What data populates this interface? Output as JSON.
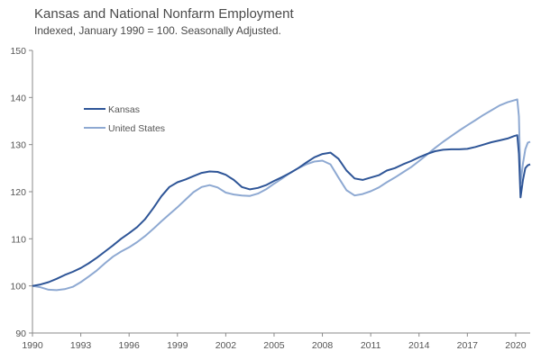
{
  "chart_data": {
    "type": "line",
    "title": "Kansas and National Nonfarm Employment",
    "subtitle": "Indexed, January 1990 = 100. Seasonally Adjusted.",
    "xlabel": "",
    "ylabel": "",
    "xlim": [
      1990,
      2020.9
    ],
    "ylim": [
      90,
      150
    ],
    "x_ticks": [
      1990,
      1993,
      1996,
      1999,
      2002,
      2005,
      2008,
      2011,
      2014,
      2017,
      2020
    ],
    "y_ticks": [
      90,
      100,
      110,
      120,
      130,
      140,
      150
    ],
    "grid": false,
    "legend_position": "top-left",
    "series": [
      {
        "name": "Kansas",
        "color": "#2e5597",
        "points": [
          [
            1990.0,
            100.0
          ],
          [
            1990.5,
            100.3
          ],
          [
            1991.0,
            100.8
          ],
          [
            1991.5,
            101.5
          ],
          [
            1992.0,
            102.3
          ],
          [
            1992.5,
            103.0
          ],
          [
            1993.0,
            103.8
          ],
          [
            1993.5,
            104.8
          ],
          [
            1994.0,
            106.0
          ],
          [
            1994.5,
            107.3
          ],
          [
            1995.0,
            108.6
          ],
          [
            1995.5,
            110.0
          ],
          [
            1996.0,
            111.2
          ],
          [
            1996.5,
            112.5
          ],
          [
            1997.0,
            114.2
          ],
          [
            1997.5,
            116.5
          ],
          [
            1998.0,
            119.0
          ],
          [
            1998.5,
            121.0
          ],
          [
            1999.0,
            122.0
          ],
          [
            1999.5,
            122.6
          ],
          [
            2000.0,
            123.3
          ],
          [
            2000.5,
            124.0
          ],
          [
            2001.0,
            124.3
          ],
          [
            2001.5,
            124.2
          ],
          [
            2002.0,
            123.6
          ],
          [
            2002.5,
            122.5
          ],
          [
            2003.0,
            121.0
          ],
          [
            2003.5,
            120.5
          ],
          [
            2004.0,
            120.8
          ],
          [
            2004.5,
            121.4
          ],
          [
            2005.0,
            122.3
          ],
          [
            2005.5,
            123.1
          ],
          [
            2006.0,
            124.0
          ],
          [
            2006.5,
            125.0
          ],
          [
            2007.0,
            126.2
          ],
          [
            2007.5,
            127.3
          ],
          [
            2008.0,
            128.0
          ],
          [
            2008.5,
            128.3
          ],
          [
            2009.0,
            127.0
          ],
          [
            2009.5,
            124.5
          ],
          [
            2010.0,
            122.8
          ],
          [
            2010.5,
            122.5
          ],
          [
            2011.0,
            123.0
          ],
          [
            2011.5,
            123.5
          ],
          [
            2012.0,
            124.5
          ],
          [
            2012.5,
            125.0
          ],
          [
            2013.0,
            125.8
          ],
          [
            2013.5,
            126.5
          ],
          [
            2014.0,
            127.3
          ],
          [
            2014.5,
            128.0
          ],
          [
            2015.0,
            128.6
          ],
          [
            2015.5,
            128.9
          ],
          [
            2016.0,
            129.0
          ],
          [
            2016.5,
            129.0
          ],
          [
            2017.0,
            129.1
          ],
          [
            2017.5,
            129.5
          ],
          [
            2018.0,
            130.0
          ],
          [
            2018.5,
            130.5
          ],
          [
            2019.0,
            130.9
          ],
          [
            2019.5,
            131.3
          ],
          [
            2019.9,
            131.8
          ],
          [
            2020.1,
            132.0
          ],
          [
            2020.2,
            128.0
          ],
          [
            2020.3,
            118.8
          ],
          [
            2020.45,
            122.5
          ],
          [
            2020.6,
            125.0
          ],
          [
            2020.75,
            125.6
          ],
          [
            2020.9,
            125.8
          ]
        ]
      },
      {
        "name": "United States",
        "color": "#8ea9d2",
        "points": [
          [
            1990.0,
            100.0
          ],
          [
            1990.5,
            99.7
          ],
          [
            1991.0,
            99.2
          ],
          [
            1991.5,
            99.1
          ],
          [
            1992.0,
            99.3
          ],
          [
            1992.5,
            99.8
          ],
          [
            1993.0,
            100.8
          ],
          [
            1993.5,
            102.0
          ],
          [
            1994.0,
            103.3
          ],
          [
            1994.5,
            104.8
          ],
          [
            1995.0,
            106.2
          ],
          [
            1995.5,
            107.3
          ],
          [
            1996.0,
            108.2
          ],
          [
            1996.5,
            109.3
          ],
          [
            1997.0,
            110.6
          ],
          [
            1997.5,
            112.1
          ],
          [
            1998.0,
            113.7
          ],
          [
            1998.5,
            115.2
          ],
          [
            1999.0,
            116.7
          ],
          [
            1999.5,
            118.3
          ],
          [
            2000.0,
            119.9
          ],
          [
            2000.5,
            121.0
          ],
          [
            2001.0,
            121.4
          ],
          [
            2001.5,
            120.9
          ],
          [
            2002.0,
            119.8
          ],
          [
            2002.5,
            119.4
          ],
          [
            2003.0,
            119.2
          ],
          [
            2003.5,
            119.1
          ],
          [
            2004.0,
            119.6
          ],
          [
            2004.5,
            120.5
          ],
          [
            2005.0,
            121.7
          ],
          [
            2005.5,
            122.8
          ],
          [
            2006.0,
            124.0
          ],
          [
            2006.5,
            125.0
          ],
          [
            2007.0,
            125.8
          ],
          [
            2007.5,
            126.4
          ],
          [
            2008.0,
            126.6
          ],
          [
            2008.5,
            125.8
          ],
          [
            2009.0,
            123.0
          ],
          [
            2009.5,
            120.3
          ],
          [
            2010.0,
            119.2
          ],
          [
            2010.5,
            119.5
          ],
          [
            2011.0,
            120.1
          ],
          [
            2011.5,
            120.9
          ],
          [
            2012.0,
            122.0
          ],
          [
            2012.5,
            123.0
          ],
          [
            2013.0,
            124.1
          ],
          [
            2013.5,
            125.2
          ],
          [
            2014.0,
            126.5
          ],
          [
            2014.5,
            127.9
          ],
          [
            2015.0,
            129.3
          ],
          [
            2015.5,
            130.6
          ],
          [
            2016.0,
            131.8
          ],
          [
            2016.5,
            133.0
          ],
          [
            2017.0,
            134.1
          ],
          [
            2017.5,
            135.2
          ],
          [
            2018.0,
            136.3
          ],
          [
            2018.5,
            137.3
          ],
          [
            2019.0,
            138.3
          ],
          [
            2019.5,
            139.0
          ],
          [
            2020.1,
            139.6
          ],
          [
            2020.2,
            136.0
          ],
          [
            2020.3,
            121.8
          ],
          [
            2020.45,
            126.0
          ],
          [
            2020.6,
            129.0
          ],
          [
            2020.75,
            130.4
          ],
          [
            2020.9,
            130.6
          ]
        ]
      }
    ]
  }
}
